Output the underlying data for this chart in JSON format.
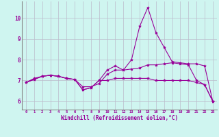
{
  "xlabel": "Windchill (Refroidissement éolien,°C)",
  "bg_color": "#cff5f0",
  "line_color": "#990099",
  "grid_color": "#bbbbcc",
  "xlim": [
    -0.5,
    23.5
  ],
  "ylim": [
    5.6,
    10.8
  ],
  "xticks": [
    0,
    1,
    2,
    3,
    4,
    5,
    6,
    7,
    8,
    9,
    10,
    11,
    12,
    13,
    14,
    15,
    16,
    17,
    18,
    19,
    20,
    21,
    22,
    23
  ],
  "yticks": [
    6,
    7,
    8,
    9,
    10
  ],
  "series": [
    [
      6.9,
      7.1,
      7.2,
      7.25,
      7.2,
      7.1,
      7.05,
      6.7,
      6.7,
      6.85,
      7.3,
      7.5,
      7.5,
      7.55,
      7.6,
      7.75,
      7.75,
      7.8,
      7.85,
      7.8,
      7.75,
      7.0,
      6.8,
      6.0
    ],
    [
      6.9,
      7.05,
      7.2,
      7.25,
      7.2,
      7.1,
      7.05,
      6.55,
      6.65,
      7.0,
      7.5,
      7.7,
      7.5,
      8.0,
      9.6,
      10.5,
      9.3,
      8.6,
      7.9,
      7.85,
      7.8,
      7.8,
      7.7,
      6.0
    ],
    [
      6.9,
      7.05,
      7.2,
      7.25,
      7.2,
      7.1,
      7.05,
      6.55,
      6.65,
      7.0,
      7.0,
      7.1,
      7.1,
      7.1,
      7.1,
      7.1,
      7.0,
      7.0,
      7.0,
      7.0,
      7.0,
      6.9,
      6.8,
      6.0
    ]
  ]
}
